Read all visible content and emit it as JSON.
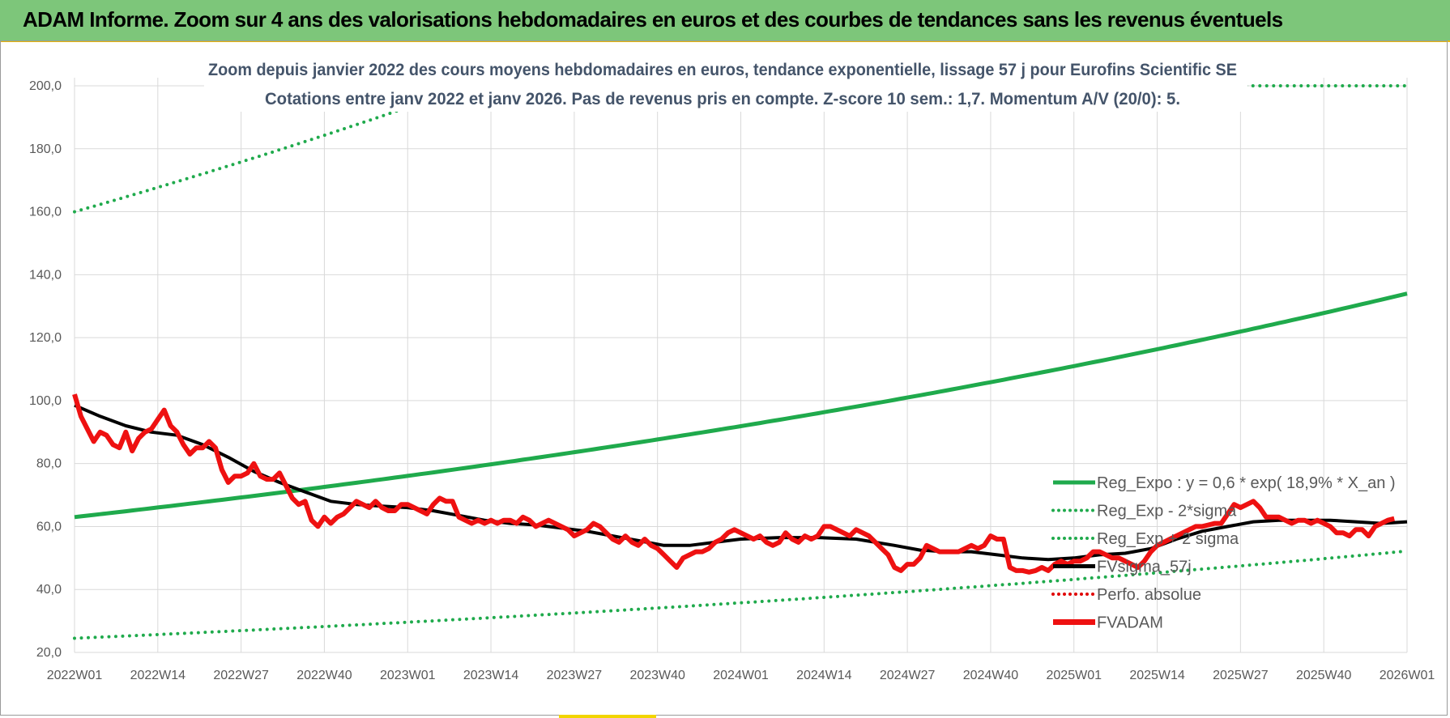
{
  "header": {
    "title": "ADAM Informe. Zoom sur 4 ans des valorisations hebdomadaires en euros et des courbes de tendances sans les revenus éventuels"
  },
  "chart_data": {
    "type": "line",
    "subtitle_lines": [
      "Zoom depuis janvier 2022 des cours moyens hebdomadaires en euros, tendance exponentielle, lissage 57 j pour Eurofins Scientific SE",
      "Cotations entre janv 2022 et janv 2026. Pas de revenus pris en compte. Z-score 10 sem.: 1,7. Momentum A/V (20/0): 5."
    ],
    "ylim": [
      20,
      200
    ],
    "y_ticks": [
      "20,0",
      "40,0",
      "60,0",
      "80,0",
      "100,0",
      "120,0",
      "140,0",
      "160,0",
      "180,0",
      "200,0"
    ],
    "x_tick_labels": [
      "2022W01",
      "2022W14",
      "2022W27",
      "2022W40",
      "2023W01",
      "2023W14",
      "2023W27",
      "2023W40",
      "2024W01",
      "2024W14",
      "2024W27",
      "2024W40",
      "2025W01",
      "2025W14",
      "2025W27",
      "2025W40",
      "2026W01"
    ],
    "x_ticks_week_index": [
      0,
      13,
      26,
      39,
      52,
      65,
      78,
      91,
      104,
      117,
      130,
      143,
      156,
      169,
      182,
      195,
      208
    ],
    "n_weeks": 209,
    "grid": true,
    "legend_position": "bottom-right",
    "series": [
      {
        "name": "Reg_Expo : y = 0,6 * exp( 18,9% *  X_an )",
        "style": "solid",
        "color": "#1faa4c",
        "start": 63,
        "end": 134
      },
      {
        "name": "Reg_Exp - 2*sigma",
        "style": "dotted",
        "color": "#1faa4c",
        "start": 24.5,
        "end": 52.2
      },
      {
        "name": "Reg_Exp + 2 sigma",
        "style": "dotted",
        "color": "#1faa4c",
        "start": 160,
        "end": 340,
        "clip_max": 200
      },
      {
        "name": "FVsigma_57j",
        "style": "solid",
        "color": "#000000",
        "points": [
          [
            0,
            98.5
          ],
          [
            4,
            95
          ],
          [
            8,
            92
          ],
          [
            12,
            90
          ],
          [
            16,
            89
          ],
          [
            20,
            86
          ],
          [
            24,
            82
          ],
          [
            28,
            77.5
          ],
          [
            32,
            74
          ],
          [
            36,
            71
          ],
          [
            40,
            68
          ],
          [
            44,
            67
          ],
          [
            48,
            66.5
          ],
          [
            52,
            66
          ],
          [
            56,
            65
          ],
          [
            60,
            63.5
          ],
          [
            64,
            62
          ],
          [
            68,
            61
          ],
          [
            72,
            60.5
          ],
          [
            76,
            59.5
          ],
          [
            80,
            58.5
          ],
          [
            84,
            57
          ],
          [
            88,
            55.5
          ],
          [
            92,
            54
          ],
          [
            96,
            54
          ],
          [
            100,
            55
          ],
          [
            104,
            56
          ],
          [
            110,
            56.5
          ],
          [
            116,
            56.5
          ],
          [
            122,
            56
          ],
          [
            128,
            54
          ],
          [
            132,
            52.5
          ],
          [
            136,
            52
          ],
          [
            140,
            52
          ],
          [
            144,
            51
          ],
          [
            148,
            50
          ],
          [
            152,
            49.5
          ],
          [
            156,
            50
          ],
          [
            160,
            51
          ],
          [
            164,
            51.5
          ],
          [
            168,
            53
          ],
          [
            172,
            56
          ],
          [
            176,
            58.5
          ],
          [
            180,
            60
          ],
          [
            184,
            61.5
          ],
          [
            188,
            62
          ],
          [
            192,
            62
          ],
          [
            196,
            62
          ],
          [
            200,
            61.5
          ],
          [
            204,
            61
          ],
          [
            208,
            61.5
          ]
        ]
      },
      {
        "name": "Perfo. absolue",
        "style": "dotted",
        "color": "#e00000",
        "points": []
      },
      {
        "name": "FVADAM",
        "style": "solid",
        "color": "#ee1111",
        "points": [
          [
            0,
            102
          ],
          [
            1,
            95
          ],
          [
            2,
            91
          ],
          [
            3,
            87
          ],
          [
            4,
            90
          ],
          [
            5,
            89
          ],
          [
            6,
            86
          ],
          [
            7,
            85
          ],
          [
            8,
            90
          ],
          [
            9,
            84
          ],
          [
            10,
            88
          ],
          [
            11,
            90
          ],
          [
            12,
            91
          ],
          [
            13,
            94
          ],
          [
            14,
            97
          ],
          [
            15,
            92
          ],
          [
            16,
            90
          ],
          [
            17,
            86
          ],
          [
            18,
            83
          ],
          [
            19,
            85
          ],
          [
            20,
            85
          ],
          [
            21,
            87
          ],
          [
            22,
            85
          ],
          [
            23,
            78
          ],
          [
            24,
            74
          ],
          [
            25,
            76
          ],
          [
            26,
            76
          ],
          [
            27,
            77
          ],
          [
            28,
            80
          ],
          [
            29,
            76
          ],
          [
            30,
            75
          ],
          [
            31,
            75
          ],
          [
            32,
            77
          ],
          [
            33,
            73
          ],
          [
            34,
            69
          ],
          [
            35,
            67
          ],
          [
            36,
            68
          ],
          [
            37,
            62
          ],
          [
            38,
            60
          ],
          [
            39,
            63
          ],
          [
            40,
            61
          ],
          [
            41,
            63
          ],
          [
            42,
            64
          ],
          [
            43,
            66
          ],
          [
            44,
            68
          ],
          [
            45,
            67
          ],
          [
            46,
            66
          ],
          [
            47,
            68
          ],
          [
            48,
            66
          ],
          [
            49,
            65
          ],
          [
            50,
            65
          ],
          [
            51,
            67
          ],
          [
            52,
            67
          ],
          [
            53,
            66
          ],
          [
            54,
            65
          ],
          [
            55,
            64
          ],
          [
            56,
            67
          ],
          [
            57,
            69
          ],
          [
            58,
            68
          ],
          [
            59,
            68
          ],
          [
            60,
            63
          ],
          [
            61,
            62
          ],
          [
            62,
            61
          ],
          [
            63,
            62
          ],
          [
            64,
            61
          ],
          [
            65,
            62
          ],
          [
            66,
            61
          ],
          [
            67,
            62
          ],
          [
            68,
            62
          ],
          [
            69,
            61
          ],
          [
            70,
            63
          ],
          [
            71,
            62
          ],
          [
            72,
            60
          ],
          [
            73,
            61
          ],
          [
            74,
            62
          ],
          [
            75,
            61
          ],
          [
            76,
            60
          ],
          [
            77,
            59
          ],
          [
            78,
            57
          ],
          [
            79,
            58
          ],
          [
            80,
            59
          ],
          [
            81,
            61
          ],
          [
            82,
            60
          ],
          [
            83,
            58
          ],
          [
            84,
            56
          ],
          [
            85,
            55
          ],
          [
            86,
            57
          ],
          [
            87,
            55
          ],
          [
            88,
            54
          ],
          [
            89,
            56
          ],
          [
            90,
            54
          ],
          [
            91,
            53
          ],
          [
            92,
            51
          ],
          [
            93,
            49
          ],
          [
            94,
            47
          ],
          [
            95,
            50
          ],
          [
            96,
            51
          ],
          [
            97,
            52
          ],
          [
            98,
            52
          ],
          [
            99,
            53
          ],
          [
            100,
            55
          ],
          [
            101,
            56
          ],
          [
            102,
            58
          ],
          [
            103,
            59
          ],
          [
            104,
            58
          ],
          [
            105,
            57
          ],
          [
            106,
            56
          ],
          [
            107,
            57
          ],
          [
            108,
            55
          ],
          [
            109,
            54
          ],
          [
            110,
            55
          ],
          [
            111,
            58
          ],
          [
            112,
            56
          ],
          [
            113,
            55
          ],
          [
            114,
            57
          ],
          [
            115,
            56
          ],
          [
            116,
            57
          ],
          [
            117,
            60
          ],
          [
            118,
            60
          ],
          [
            119,
            59
          ],
          [
            120,
            58
          ],
          [
            121,
            57
          ],
          [
            122,
            59
          ],
          [
            123,
            58
          ],
          [
            124,
            57
          ],
          [
            125,
            55
          ],
          [
            126,
            53
          ],
          [
            127,
            51
          ],
          [
            128,
            47
          ],
          [
            129,
            46
          ],
          [
            130,
            48
          ],
          [
            131,
            48
          ],
          [
            132,
            50
          ],
          [
            133,
            54
          ],
          [
            134,
            53
          ],
          [
            135,
            52
          ],
          [
            136,
            52
          ],
          [
            137,
            52
          ],
          [
            138,
            52
          ],
          [
            139,
            53
          ],
          [
            140,
            54
          ],
          [
            141,
            53
          ],
          [
            142,
            54
          ],
          [
            143,
            57
          ],
          [
            144,
            56
          ],
          [
            145,
            56
          ],
          [
            146,
            47
          ],
          [
            147,
            46
          ],
          [
            148,
            46
          ],
          [
            149,
            45.5
          ],
          [
            150,
            46
          ],
          [
            151,
            47
          ],
          [
            152,
            46
          ],
          [
            153,
            48
          ],
          [
            154,
            49
          ],
          [
            155,
            48
          ],
          [
            156,
            49
          ],
          [
            157,
            49
          ],
          [
            158,
            50
          ],
          [
            159,
            52
          ],
          [
            160,
            52
          ],
          [
            161,
            51
          ],
          [
            162,
            50
          ],
          [
            163,
            50
          ],
          [
            164,
            49
          ],
          [
            165,
            48
          ],
          [
            166,
            47
          ],
          [
            167,
            49
          ],
          [
            168,
            52
          ],
          [
            169,
            54
          ],
          [
            170,
            55
          ],
          [
            171,
            56
          ],
          [
            172,
            57
          ],
          [
            173,
            58
          ],
          [
            174,
            59
          ],
          [
            175,
            60
          ],
          [
            176,
            60
          ],
          [
            177,
            60.5
          ],
          [
            178,
            61
          ],
          [
            179,
            61
          ],
          [
            180,
            64
          ],
          [
            181,
            67
          ],
          [
            182,
            66
          ],
          [
            183,
            67
          ],
          [
            184,
            68
          ],
          [
            185,
            66
          ],
          [
            186,
            63
          ],
          [
            187,
            63
          ],
          [
            188,
            63
          ],
          [
            189,
            62
          ],
          [
            190,
            61
          ],
          [
            191,
            62
          ],
          [
            192,
            62
          ],
          [
            193,
            61
          ],
          [
            194,
            62
          ],
          [
            195,
            61
          ],
          [
            196,
            60
          ],
          [
            197,
            58
          ],
          [
            198,
            58
          ],
          [
            199,
            57
          ],
          [
            200,
            59
          ],
          [
            201,
            59
          ],
          [
            202,
            57
          ],
          [
            203,
            60
          ],
          [
            204,
            61
          ],
          [
            205,
            62
          ],
          [
            206,
            62.5
          ]
        ]
      }
    ]
  }
}
